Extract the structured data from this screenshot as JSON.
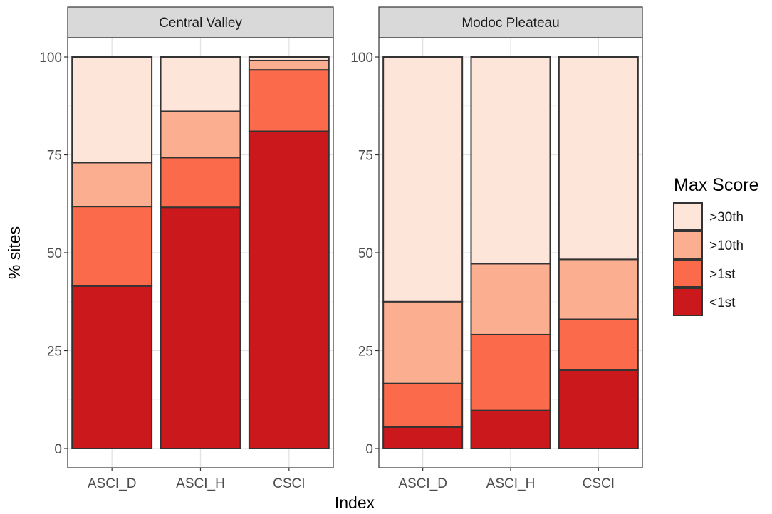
{
  "chart_data": {
    "type": "bar",
    "stacked": true,
    "xlabel": "Index",
    "ylabel": "% sites",
    "ylim": [
      0,
      100
    ],
    "yticks": [
      "0",
      "25",
      "50",
      "75",
      "100"
    ],
    "grid": true,
    "legend": {
      "title": "Max Score",
      "position": "right",
      "entries": [
        ">30th",
        ">10th",
        ">1st",
        "<1st"
      ]
    },
    "colors": {
      "<1st": "#cb181d",
      ">1st": "#fb6a4a",
      ">10th": "#fcae91",
      ">30th": "#fee5d9"
    },
    "categories": [
      "ASCI_D",
      "ASCI_H",
      "CSCI"
    ],
    "panels": [
      {
        "title": "Central Valley",
        "series": [
          {
            "name": "<1st",
            "values": [
              41.5,
              61.6,
              81.0
            ]
          },
          {
            "name": ">1st",
            "values": [
              20.3,
              12.7,
              15.7
            ]
          },
          {
            "name": ">10th",
            "values": [
              11.2,
              11.8,
              2.4
            ]
          },
          {
            "name": ">30th",
            "values": [
              27.0,
              13.9,
              0.9
            ]
          }
        ]
      },
      {
        "title": "Modoc Pleateau",
        "series": [
          {
            "name": "<1st",
            "values": [
              5.5,
              9.7,
              20.0
            ]
          },
          {
            "name": ">1st",
            "values": [
              11.1,
              19.4,
              13.0
            ]
          },
          {
            "name": ">10th",
            "values": [
              20.9,
              18.1,
              15.3
            ]
          },
          {
            "name": ">30th",
            "values": [
              62.5,
              52.8,
              51.7
            ]
          }
        ]
      }
    ]
  }
}
